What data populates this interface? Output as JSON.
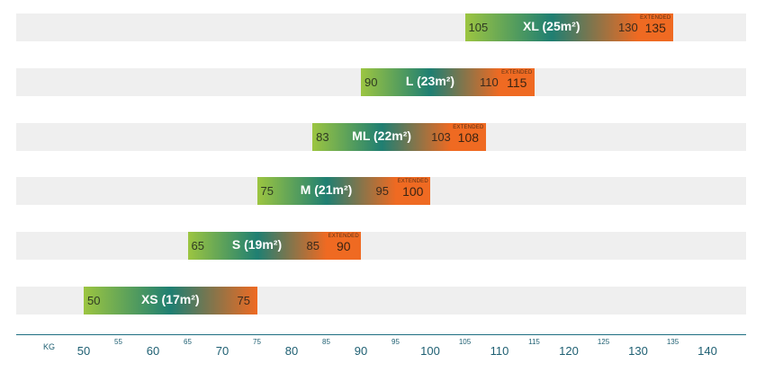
{
  "chart_data": {
    "type": "bar",
    "orientation": "horizontal-range",
    "x_unit_label": "KG",
    "xlim": [
      45,
      147
    ],
    "extended_label": "EXTENDED",
    "major_ticks": [
      50,
      60,
      70,
      80,
      90,
      100,
      110,
      120,
      130,
      140
    ],
    "minor_ticks": [
      55,
      65,
      75,
      85,
      95,
      105,
      115,
      125,
      135
    ],
    "sizes": [
      {
        "name": "XL (25m²)",
        "min": 105,
        "max": 130,
        "extended": 135
      },
      {
        "name": "L (23m²)",
        "min": 90,
        "max": 110,
        "extended": 115
      },
      {
        "name": "ML (22m²)",
        "min": 83,
        "max": 103,
        "extended": 108
      },
      {
        "name": "M (21m²)",
        "min": 75,
        "max": 95,
        "extended": 100
      },
      {
        "name": "S (19m²)",
        "min": 65,
        "max": 85,
        "extended": 90
      },
      {
        "name": "XS (17m²)",
        "min": 50,
        "max": 75,
        "extended": null
      }
    ],
    "colors": {
      "track": "#efefef",
      "gradient_start": "#9cc541",
      "gradient_mid": "#1f7f72",
      "gradient_end": "#ef6a22",
      "extended": "#ef6a22",
      "axis": "#1e6f82"
    }
  }
}
